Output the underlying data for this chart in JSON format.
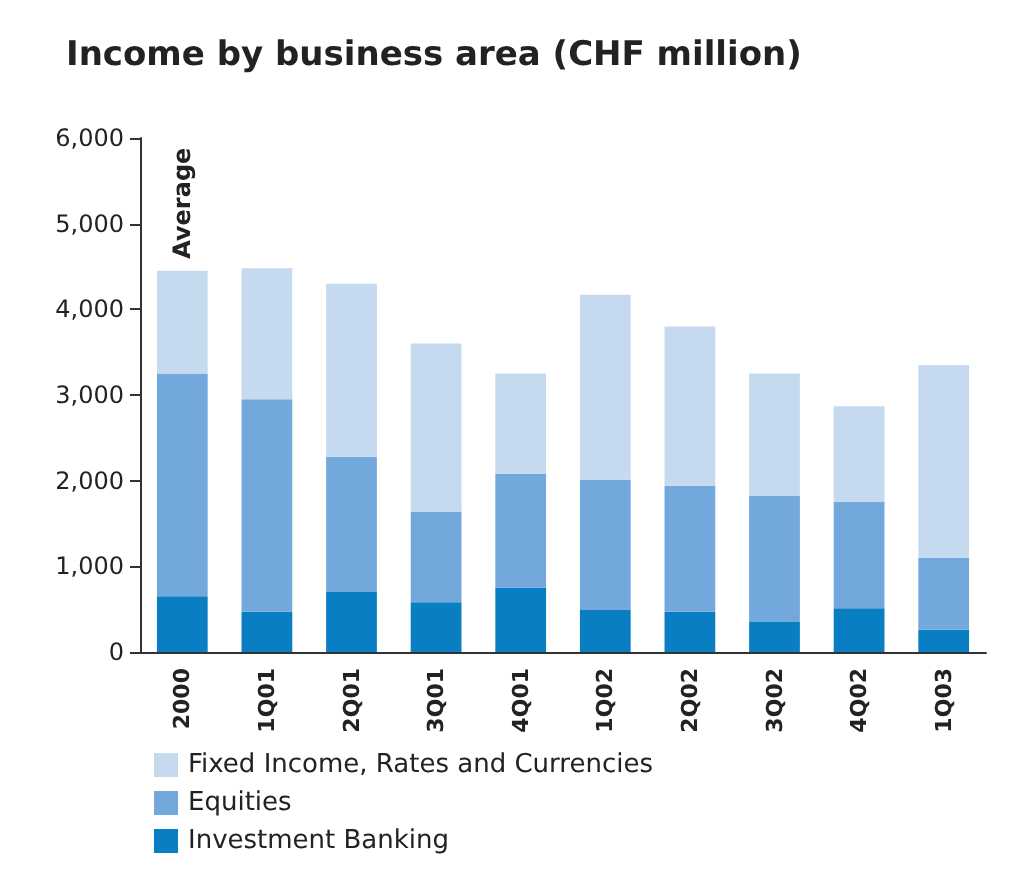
{
  "chart_data": {
    "type": "bar",
    "title": "Income by business area (CHF million)",
    "categories": [
      "2000",
      "1Q01",
      "2Q01",
      "3Q01",
      "4Q01",
      "1Q02",
      "2Q02",
      "3Q02",
      "4Q02",
      "1Q03"
    ],
    "stacked": true,
    "series": [
      {
        "name": "Investment Banking",
        "color": "#0a7ec2",
        "values": [
          650,
          470,
          700,
          580,
          750,
          490,
          470,
          350,
          510,
          260
        ]
      },
      {
        "name": "Equities",
        "color": "#73a8dc",
        "values": [
          2600,
          2480,
          1580,
          1060,
          1330,
          1520,
          1470,
          1470,
          1240,
          840
        ]
      },
      {
        "name": "Fixed Income, Rates and Currencies",
        "color": "#c5d9ef",
        "values": [
          1200,
          1530,
          2020,
          1960,
          1170,
          2160,
          1860,
          1430,
          1120,
          2250
        ]
      }
    ],
    "ylim": [
      0,
      6000
    ],
    "yticks": [
      {
        "value": 0,
        "label": "0"
      },
      {
        "value": 1000,
        "label": "1,000"
      },
      {
        "value": 2000,
        "label": "2,000"
      },
      {
        "value": 3000,
        "label": "3,000"
      },
      {
        "value": 4000,
        "label": "4,000"
      },
      {
        "value": 5000,
        "label": "5,000"
      },
      {
        "value": 6000,
        "label": "6,000"
      }
    ],
    "annotations": [
      {
        "text": "Average",
        "x": "2000",
        "y": 4450
      }
    ],
    "grid": false,
    "legend": "bottom"
  }
}
